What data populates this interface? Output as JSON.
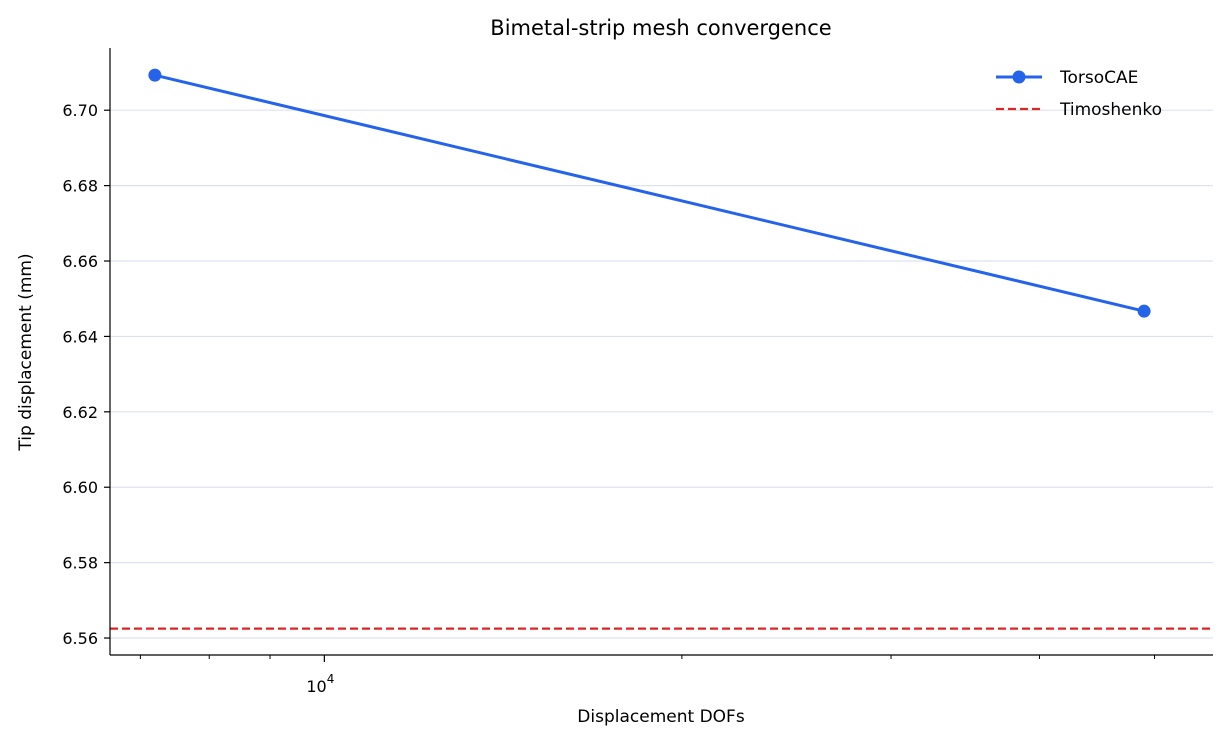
{
  "chart_data": {
    "type": "line",
    "title": "Bimetal-strip mesh convergence",
    "xlabel": "Displacement DOFs",
    "ylabel": "Tip displacement (mm)",
    "x_scale": "log",
    "xlim": [
      6600,
      56000
    ],
    "ylim": [
      6.5555,
      6.7165
    ],
    "x_major_ticks": [
      {
        "value": 10000,
        "base": "10",
        "exp": "4"
      }
    ],
    "x_minor_ticks": [
      7000,
      8000,
      9000,
      20000,
      30000,
      40000,
      50000
    ],
    "y_ticks": [
      6.56,
      6.58,
      6.6,
      6.62,
      6.64,
      6.66,
      6.68,
      6.7
    ],
    "y_tick_labels": [
      "6.56",
      "6.58",
      "6.60",
      "6.62",
      "6.64",
      "6.66",
      "6.68",
      "6.70"
    ],
    "grid": {
      "y": true,
      "x": false,
      "color": "#dde2f0"
    },
    "legend_position": "top-right",
    "series": [
      {
        "name": "TorsoCAE",
        "color": "#2563eb",
        "style": "solid",
        "marker": "circle",
        "x": [
          7200,
          49000
        ],
        "y": [
          6.7093,
          6.6467
        ]
      }
    ],
    "reference_lines": [
      {
        "name": "Timoshenko",
        "color": "#dc2626",
        "style": "dashed",
        "y": 6.5625
      }
    ]
  }
}
